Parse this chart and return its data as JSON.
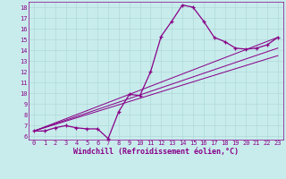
{
  "xlabel": "Windchill (Refroidissement éolien,°C)",
  "bg_color": "#c8ecec",
  "grid_color": "#b0d8d8",
  "line_color": "#880088",
  "marker": "+",
  "xlim": [
    -0.5,
    23.5
  ],
  "ylim": [
    5.7,
    18.5
  ],
  "xticks": [
    0,
    1,
    2,
    3,
    4,
    5,
    6,
    7,
    8,
    9,
    10,
    11,
    12,
    13,
    14,
    15,
    16,
    17,
    18,
    19,
    20,
    21,
    22,
    23
  ],
  "yticks": [
    6,
    7,
    8,
    9,
    10,
    11,
    12,
    13,
    14,
    15,
    16,
    17,
    18
  ],
  "main_x": [
    0,
    1,
    2,
    3,
    4,
    5,
    6,
    7,
    8,
    9,
    10,
    11,
    12,
    13,
    14,
    15,
    16,
    17,
    18,
    19,
    20,
    21,
    22,
    23
  ],
  "main_y": [
    6.5,
    6.5,
    6.8,
    7.0,
    6.8,
    6.7,
    6.7,
    5.8,
    8.3,
    9.9,
    9.8,
    12.0,
    15.3,
    16.7,
    18.2,
    18.0,
    16.7,
    15.2,
    14.8,
    14.2,
    14.1,
    14.2,
    14.5,
    15.2
  ],
  "diag_lines": [
    {
      "x": [
        0,
        23
      ],
      "y": [
        6.5,
        13.5
      ]
    },
    {
      "x": [
        0,
        23
      ],
      "y": [
        6.5,
        14.2
      ]
    },
    {
      "x": [
        0,
        23
      ],
      "y": [
        6.5,
        15.2
      ]
    }
  ],
  "tick_fontsize": 5.0,
  "label_fontsize": 6.0,
  "linewidth": 0.9,
  "markersize": 3.0
}
